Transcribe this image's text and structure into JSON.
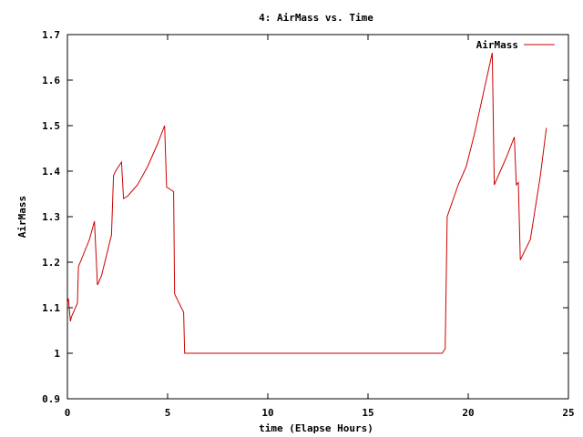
{
  "chart_data": {
    "type": "line",
    "title": "4: AirMass vs. Time",
    "xlabel": "time (Elapse Hours)",
    "ylabel": "AirMass",
    "xlim": [
      0,
      25
    ],
    "ylim": [
      0.9,
      1.7
    ],
    "xticks": [
      0,
      5,
      10,
      15,
      20,
      25
    ],
    "xtick_labels": [
      "0",
      "5",
      "10",
      "15",
      "20",
      "25"
    ],
    "yticks": [
      0.9,
      1.0,
      1.1,
      1.2,
      1.3,
      1.4,
      1.5,
      1.6,
      1.7
    ],
    "ytick_labels": [
      "0.9",
      "1",
      "1.1",
      "1.2",
      "1.3",
      "1.4",
      "1.5",
      "1.6",
      "1.7"
    ],
    "grid": false,
    "legend_position": "top-right",
    "series": [
      {
        "name": "AirMass",
        "color": "#cc0000",
        "x": [
          0.0,
          0.05,
          0.15,
          0.2,
          0.5,
          0.55,
          1.1,
          1.35,
          1.5,
          1.7,
          2.2,
          2.3,
          2.4,
          2.7,
          2.8,
          3.0,
          3.5,
          4.0,
          4.5,
          4.85,
          4.95,
          5.3,
          5.35,
          5.8,
          5.85,
          6.0,
          8.0,
          12.0,
          16.0,
          18.7,
          18.85,
          18.95,
          19.5,
          19.9,
          20.3,
          20.9,
          21.2,
          21.3,
          21.9,
          22.3,
          22.4,
          22.5,
          22.6,
          23.1,
          23.6,
          23.9
        ],
        "y": [
          1.11,
          1.12,
          1.07,
          1.08,
          1.11,
          1.19,
          1.25,
          1.29,
          1.15,
          1.17,
          1.26,
          1.39,
          1.4,
          1.42,
          1.34,
          1.345,
          1.37,
          1.41,
          1.46,
          1.5,
          1.365,
          1.355,
          1.13,
          1.09,
          1.0,
          1.0,
          1.0,
          1.0,
          1.0,
          1.0,
          1.01,
          1.3,
          1.37,
          1.41,
          1.48,
          1.6,
          1.66,
          1.37,
          1.43,
          1.475,
          1.37,
          1.375,
          1.205,
          1.25,
          1.39,
          1.495
        ]
      }
    ]
  }
}
